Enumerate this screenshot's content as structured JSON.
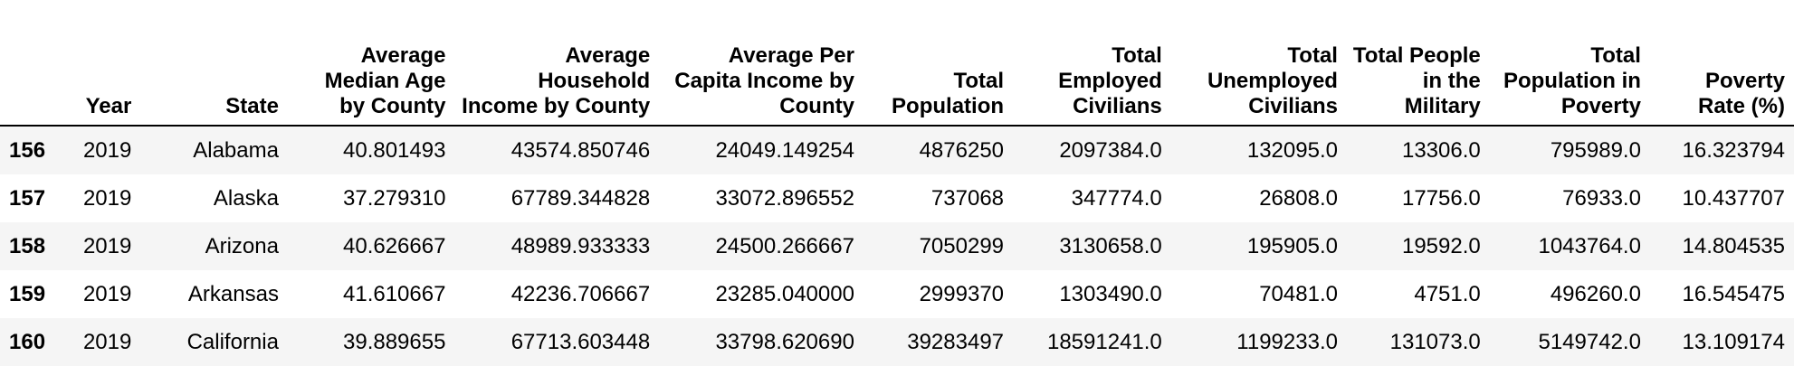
{
  "table": {
    "columns": [
      {
        "key": "index",
        "lines": []
      },
      {
        "key": "year",
        "lines": [
          "Year"
        ]
      },
      {
        "key": "state",
        "lines": [
          "State"
        ]
      },
      {
        "key": "median_age",
        "lines": [
          "Average",
          "Median Age",
          "by County"
        ]
      },
      {
        "key": "household_income",
        "lines": [
          "Average",
          "Household",
          "Income by County"
        ]
      },
      {
        "key": "per_capita_income",
        "lines": [
          "Average Per",
          "Capita Income by",
          "County"
        ]
      },
      {
        "key": "total_population",
        "lines": [
          "Total",
          "Population"
        ]
      },
      {
        "key": "employed",
        "lines": [
          "Total",
          "Employed",
          "Civilians"
        ]
      },
      {
        "key": "unemployed",
        "lines": [
          "Total",
          "Unemployed",
          "Civilians"
        ]
      },
      {
        "key": "military",
        "lines": [
          "Total People",
          "in the",
          "Military"
        ]
      },
      {
        "key": "poverty_pop",
        "lines": [
          "Total",
          "Population in",
          "Poverty"
        ]
      },
      {
        "key": "poverty_rate",
        "lines": [
          "Poverty",
          "Rate (%)"
        ]
      }
    ],
    "rows": [
      [
        "156",
        "2019",
        "Alabama",
        "40.801493",
        "43574.850746",
        "24049.149254",
        "4876250",
        "2097384.0",
        "132095.0",
        "13306.0",
        "795989.0",
        "16.323794"
      ],
      [
        "157",
        "2019",
        "Alaska",
        "37.279310",
        "67789.344828",
        "33072.896552",
        "737068",
        "347774.0",
        "26808.0",
        "17756.0",
        "76933.0",
        "10.437707"
      ],
      [
        "158",
        "2019",
        "Arizona",
        "40.626667",
        "48989.933333",
        "24500.266667",
        "7050299",
        "3130658.0",
        "195905.0",
        "19592.0",
        "1043764.0",
        "14.804535"
      ],
      [
        "159",
        "2019",
        "Arkansas",
        "41.610667",
        "42236.706667",
        "23285.040000",
        "2999370",
        "1303490.0",
        "70481.0",
        "4751.0",
        "496260.0",
        "16.545475"
      ],
      [
        "160",
        "2019",
        "California",
        "39.889655",
        "67713.603448",
        "33798.620690",
        "39283497",
        "18591241.0",
        "1199233.0",
        "131073.0",
        "5149742.0",
        "13.109174"
      ]
    ]
  }
}
